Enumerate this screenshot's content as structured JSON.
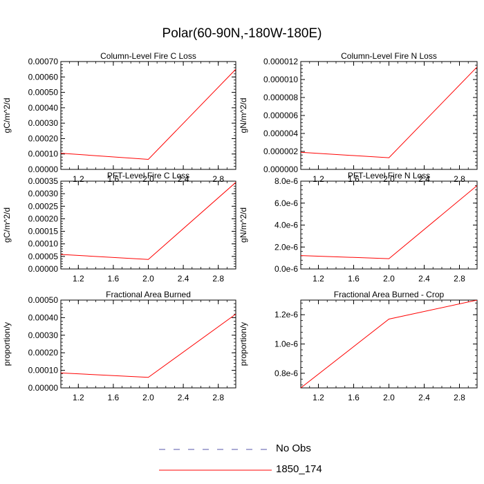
{
  "title": "Polar(60-90N,-180W-180E)",
  "colors": {
    "model_line": "#ff0000",
    "obs_line": "#5555aa",
    "axis": "#000000"
  },
  "legend": [
    {
      "label": "No Obs",
      "style": "dashed",
      "color": "#5555aa"
    },
    {
      "label": "1850_174",
      "style": "solid",
      "color": "#ff0000"
    }
  ],
  "chart_data": [
    {
      "type": "line",
      "title": "Column-Level Fire C Loss",
      "ylabel": "gC/m^2/d",
      "xlim": [
        1.0,
        3.0
      ],
      "ylim": [
        0,
        0.0007
      ],
      "x_ticks": [
        1.2,
        1.6,
        2.0,
        2.4,
        2.8
      ],
      "x_tick_labels": [
        "1.2",
        "1.6",
        "2.0",
        "2.4",
        "2.8"
      ],
      "y_ticks": [
        0,
        0.0001,
        0.0002,
        0.0003,
        0.0004,
        0.0005,
        0.0006,
        0.0007
      ],
      "y_tick_labels": [
        "0.00000",
        "0.00010",
        "0.00020",
        "0.00030",
        "0.00040",
        "0.00050",
        "0.00060",
        "0.00070"
      ],
      "series": [
        {
          "name": "1850_174",
          "x": [
            1,
            2,
            3
          ],
          "values": [
            0.000105,
            6.5e-05,
            0.00065
          ]
        }
      ]
    },
    {
      "type": "line",
      "title": "Column-Level Fire N Loss",
      "ylabel": "gN/m^2/d",
      "xlim": [
        1.0,
        3.0
      ],
      "ylim": [
        0,
        1.2e-05
      ],
      "x_ticks": [
        1.2,
        1.6,
        2.0,
        2.4,
        2.8
      ],
      "x_tick_labels": [
        "1.2",
        "1.6",
        "2.0",
        "2.4",
        "2.8"
      ],
      "y_ticks": [
        0,
        2e-06,
        4e-06,
        6e-06,
        8e-06,
        1e-05,
        1.2e-05
      ],
      "y_tick_labels": [
        "0.000000",
        "0.000002",
        "0.000004",
        "0.000006",
        "0.000008",
        "0.000010",
        "0.000012"
      ],
      "series": [
        {
          "name": "1850_174",
          "x": [
            1,
            2,
            3
          ],
          "values": [
            1.9e-06,
            1.3e-06,
            1.14e-05
          ]
        }
      ]
    },
    {
      "type": "line",
      "title": "PFT-Level Fire C Loss",
      "ylabel": "gC/m^2/d",
      "xlim": [
        1.0,
        3.0
      ],
      "ylim": [
        0,
        0.00035
      ],
      "x_ticks": [
        1.2,
        1.6,
        2.0,
        2.4,
        2.8
      ],
      "x_tick_labels": [
        "1.2",
        "1.6",
        "2.0",
        "2.4",
        "2.8"
      ],
      "y_ticks": [
        0,
        5e-05,
        0.0001,
        0.00015,
        0.0002,
        0.00025,
        0.0003,
        0.00035
      ],
      "y_tick_labels": [
        "0.00000",
        "0.00005",
        "0.00010",
        "0.00015",
        "0.00020",
        "0.00025",
        "0.00030",
        "0.00035"
      ],
      "series": [
        {
          "name": "1850_174",
          "x": [
            1,
            2,
            3
          ],
          "values": [
            5.8e-05,
            3.8e-05,
            0.000345
          ]
        }
      ]
    },
    {
      "type": "line",
      "title": "PFT-Level Fire N Loss",
      "ylabel": "gN/m^2/d",
      "xlim": [
        1.0,
        3.0
      ],
      "ylim": [
        0,
        8e-06
      ],
      "x_ticks": [
        1.2,
        1.6,
        2.0,
        2.4,
        2.8
      ],
      "x_tick_labels": [
        "1.2",
        "1.6",
        "2.0",
        "2.4",
        "2.8"
      ],
      "y_ticks": [
        0,
        2e-06,
        4e-06,
        6e-06,
        8e-06
      ],
      "y_tick_labels": [
        "0.0e-6",
        "2.0e-6",
        "4.0e-6",
        "6.0e-6",
        "8.0e-6"
      ],
      "series": [
        {
          "name": "1850_174",
          "x": [
            1,
            2,
            3
          ],
          "values": [
            1.22e-06,
            9.4e-07,
            7.6e-06
          ]
        }
      ]
    },
    {
      "type": "line",
      "title": "Fractional Area Burned",
      "ylabel": "proportion/y",
      "xlim": [
        1.0,
        3.0
      ],
      "ylim": [
        0,
        0.0005
      ],
      "x_ticks": [
        1.2,
        1.6,
        2.0,
        2.4,
        2.8
      ],
      "x_tick_labels": [
        "1.2",
        "1.6",
        "2.0",
        "2.4",
        "2.8"
      ],
      "y_ticks": [
        0,
        0.0001,
        0.0002,
        0.0003,
        0.0004,
        0.0005
      ],
      "y_tick_labels": [
        "0.00000",
        "0.00010",
        "0.00020",
        "0.00030",
        "0.00040",
        "0.00050"
      ],
      "series": [
        {
          "name": "1850_174",
          "x": [
            1,
            2,
            3
          ],
          "values": [
            8.5e-05,
            6e-05,
            0.00042
          ]
        }
      ]
    },
    {
      "type": "line",
      "title": "Fractional Area Burned - Crop",
      "ylabel": "proportion/y",
      "xlim": [
        1.0,
        3.0
      ],
      "ylim": [
        7e-07,
        1.3e-06
      ],
      "x_ticks": [
        1.2,
        1.6,
        2.0,
        2.4,
        2.8
      ],
      "x_tick_labels": [
        "1.2",
        "1.6",
        "2.0",
        "2.4",
        "2.8"
      ],
      "y_ticks": [
        8e-07,
        1e-06,
        1.2e-06
      ],
      "y_tick_labels": [
        "0.8e-6",
        "1.0e-6",
        "1.2e-6"
      ],
      "series": [
        {
          "name": "1850_174",
          "x": [
            1,
            2,
            3
          ],
          "values": [
            7e-07,
            1.17e-06,
            1.3e-06
          ]
        }
      ]
    }
  ]
}
